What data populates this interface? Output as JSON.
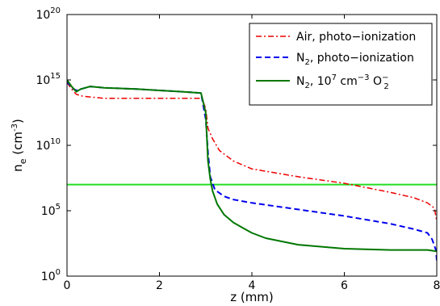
{
  "chart_data": {
    "type": "line",
    "xlabel": "z (mm)",
    "ylabel": "n_e (cm^-3)",
    "xlim": [
      0,
      8
    ],
    "ylim_exponent": [
      0,
      20
    ],
    "y_scale": "log",
    "x_ticks": [
      0,
      2,
      4,
      6,
      8
    ],
    "y_ticks": [
      {
        "base": "10",
        "exp": "0",
        "value": 0
      },
      {
        "base": "10",
        "exp": "5",
        "value": 5
      },
      {
        "base": "10",
        "exp": "10",
        "value": 10
      },
      {
        "base": "10",
        "exp": "15",
        "value": 15
      },
      {
        "base": "10",
        "exp": "20",
        "value": 20
      }
    ],
    "legend_position": "top-right",
    "reference_line": {
      "log10_value": 7,
      "color": "#22dd22"
    },
    "series": [
      {
        "legend_main": "Air, photo−ionization",
        "color": "#ee0000",
        "dash": "dashdot",
        "x": [
          0,
          0.1,
          0.2,
          0.35,
          0.5,
          0.8,
          1.2,
          2.0,
          2.8,
          2.92,
          3.0,
          3.05,
          3.15,
          3.3,
          3.6,
          4.0,
          5.0,
          6.0,
          7.0,
          7.5,
          7.8,
          7.95,
          8.0
        ],
        "log10_y": [
          14.8,
          14.3,
          13.9,
          13.75,
          13.7,
          13.6,
          13.6,
          13.6,
          13.6,
          13.6,
          12.8,
          11.3,
          10.5,
          9.6,
          8.8,
          8.2,
          7.6,
          7.1,
          6.4,
          6.0,
          5.6,
          5.2,
          4.2
        ]
      },
      {
        "legend_main": "N",
        "legend_sub": "2",
        "legend_rest": ", photo−ionization",
        "color": "#0000ee",
        "dash": "dashed",
        "x": [
          0,
          0.1,
          0.2,
          0.3,
          0.5,
          0.8,
          1.5,
          2.0,
          2.5,
          2.9,
          3.0,
          3.05,
          3.1,
          3.2,
          3.4,
          3.6,
          4.0,
          5.0,
          6.0,
          7.0,
          7.5,
          7.8,
          7.9,
          7.98,
          8.0
        ],
        "log10_y": [
          14.9,
          14.4,
          14.2,
          14.3,
          14.5,
          14.4,
          14.3,
          14.2,
          14.1,
          14.0,
          12.0,
          9.5,
          7.6,
          6.6,
          6.1,
          5.85,
          5.6,
          5.1,
          4.6,
          4.0,
          3.6,
          3.3,
          2.8,
          2.0,
          1.2
        ]
      },
      {
        "legend_main": "N",
        "legend_sub": "2",
        "legend_rest": ", 10",
        "legend_sup": "7",
        "legend_unit": " cm",
        "legend_unit_sup": "−3",
        "legend_tail": " O",
        "legend_tail_sub": "2",
        "legend_tail_sup": "−",
        "color": "#007700",
        "dash": "solid",
        "x": [
          0,
          0.1,
          0.2,
          0.3,
          0.5,
          0.8,
          1.5,
          2.0,
          2.5,
          2.9,
          3.0,
          3.05,
          3.1,
          3.15,
          3.25,
          3.4,
          3.6,
          3.8,
          4.0,
          4.3,
          5.0,
          6.0,
          7.0,
          7.8,
          8.0
        ],
        "log10_y": [
          15.0,
          14.5,
          14.1,
          14.3,
          14.5,
          14.4,
          14.3,
          14.2,
          14.1,
          14.0,
          12.5,
          8.8,
          7.4,
          6.5,
          5.5,
          4.7,
          4.1,
          3.7,
          3.3,
          2.9,
          2.4,
          2.1,
          2.0,
          2.0,
          1.9
        ]
      }
    ]
  }
}
